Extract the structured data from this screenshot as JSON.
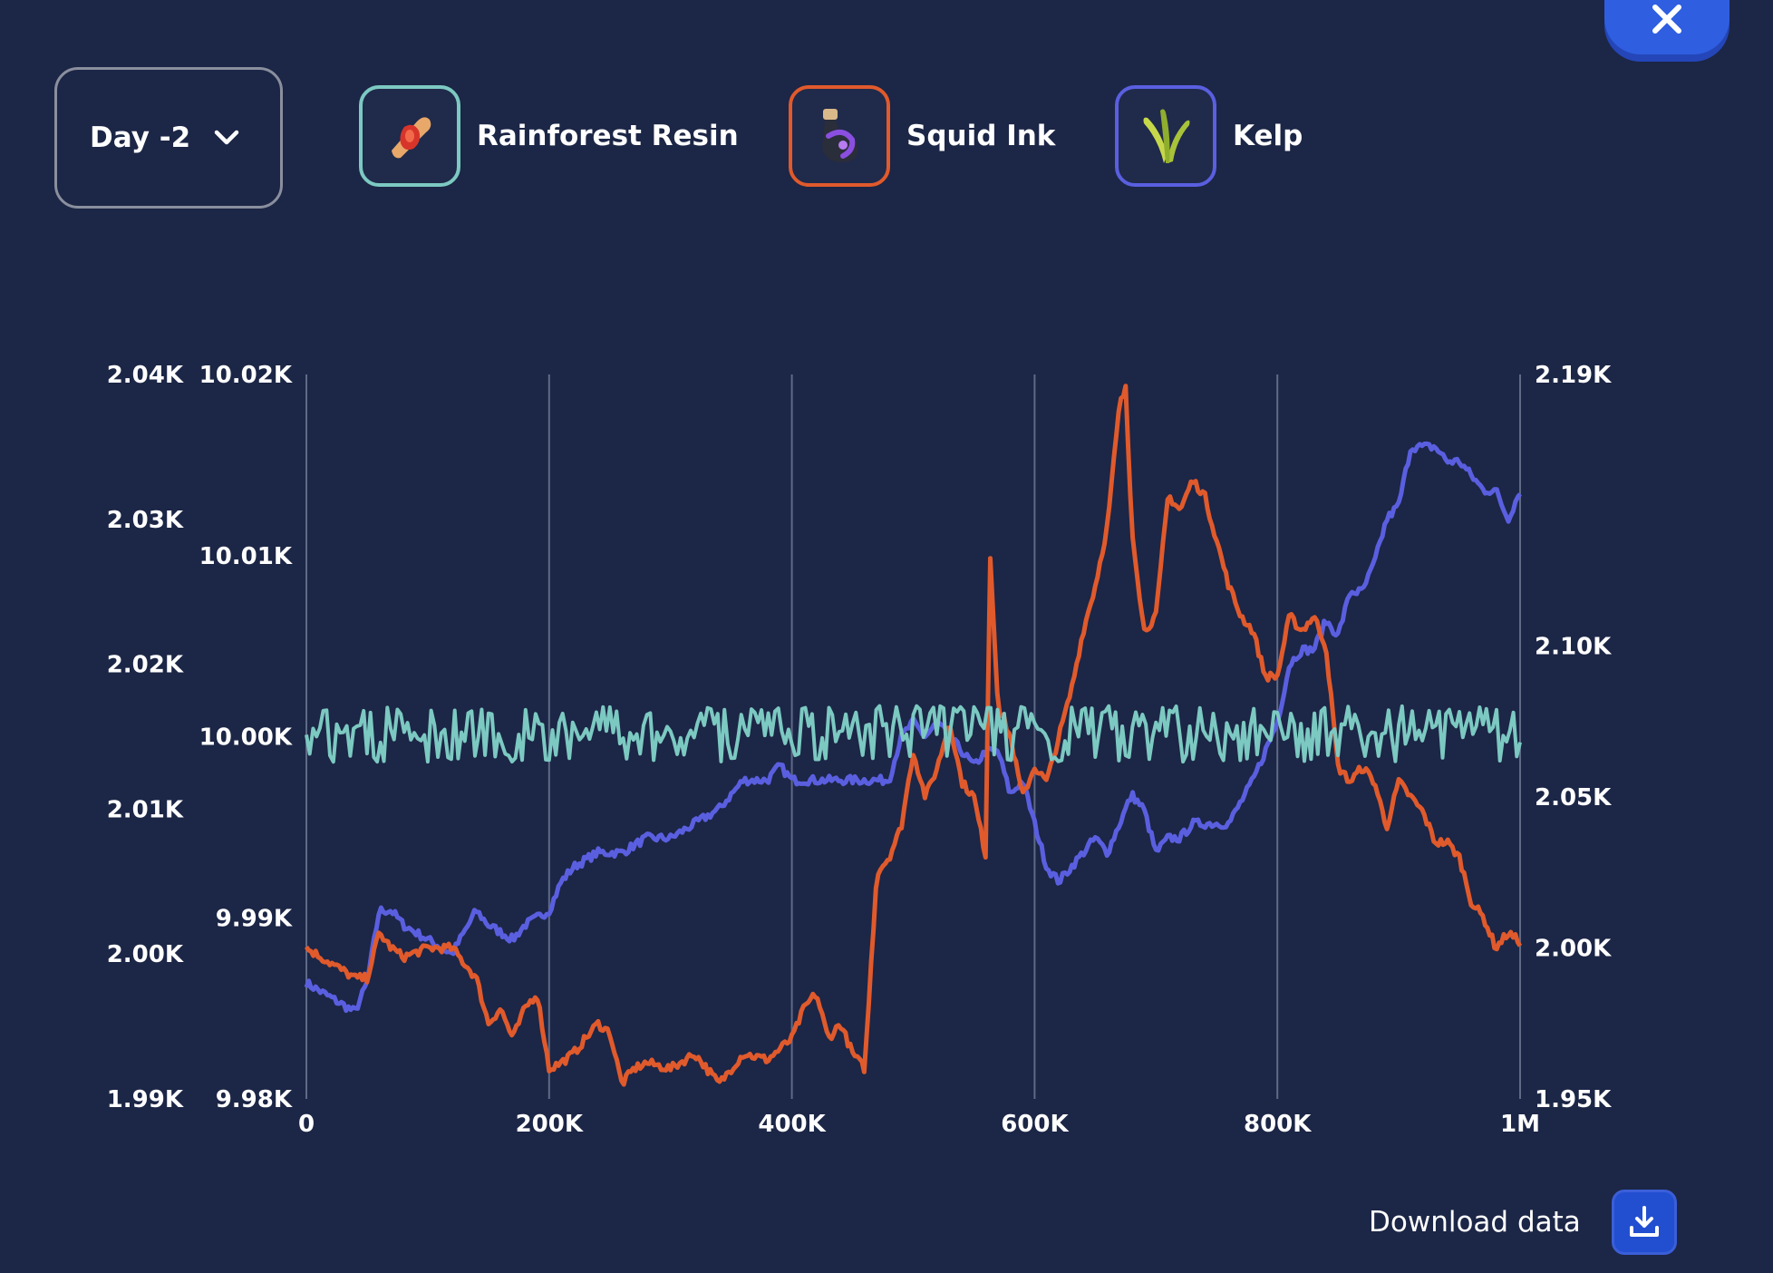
{
  "day_select": {
    "label": "Day -2"
  },
  "legend": [
    {
      "label": "Rainforest Resin",
      "color": "#7cc9c2",
      "icon": "resin-icon"
    },
    {
      "label": "Squid Ink",
      "color": "#e05a2c",
      "icon": "ink-bottle-icon"
    },
    {
      "label": "Kelp",
      "color": "#5a5fe0",
      "icon": "kelp-icon"
    }
  ],
  "download": {
    "label": "Download data"
  },
  "chart_data": {
    "type": "line",
    "x_ticks": [
      "0",
      "200K",
      "400K",
      "600K",
      "800K",
      "1M"
    ],
    "xlim": [
      0,
      1000000
    ],
    "grid": "vertical",
    "axes": [
      {
        "id": "kelp_axis",
        "position": "left-outer",
        "ylim": [
          1990,
          2040
        ],
        "ticks": [
          {
            "value": 2040,
            "label": "2.04K"
          },
          {
            "value": 2030,
            "label": "2.03K"
          },
          {
            "value": 2020,
            "label": "2.02K"
          },
          {
            "value": 2010,
            "label": "2.01K"
          },
          {
            "value": 2000,
            "label": "2.00K"
          },
          {
            "value": 1990,
            "label": "1.99K"
          }
        ]
      },
      {
        "id": "resin_axis",
        "position": "left-inner",
        "ylim": [
          9980,
          10020
        ],
        "ticks": [
          {
            "value": 10020,
            "label": "10.02K"
          },
          {
            "value": 10010,
            "label": "10.01K"
          },
          {
            "value": 10000,
            "label": "10.00K"
          },
          {
            "value": 9990,
            "label": "9.99K"
          },
          {
            "value": 9980,
            "label": "9.98K"
          }
        ]
      },
      {
        "id": "ink_axis",
        "position": "right",
        "ylim": [
          1950,
          2190
        ],
        "ticks": [
          {
            "value": 2190,
            "label": "2.19K"
          },
          {
            "value": 2100,
            "label": "2.10K"
          },
          {
            "value": 2050,
            "label": "2.05K"
          },
          {
            "value": 2000,
            "label": "2.00K"
          },
          {
            "value": 1950,
            "label": "1.95K"
          }
        ]
      }
    ],
    "series": [
      {
        "name": "Rainforest Resin",
        "axis": "resin_axis",
        "color": "#7cc9c2",
        "style": "oscillating",
        "center": 10000.2,
        "high": 10001.7,
        "low": 9998.6,
        "x": [
          0,
          1000000
        ]
      },
      {
        "name": "Squid Ink",
        "axis": "ink_axis",
        "color": "#e05a2c",
        "x": [
          0,
          20000,
          40000,
          50000,
          60000,
          70000,
          80000,
          100000,
          120000,
          140000,
          150000,
          160000,
          170000,
          180000,
          190000,
          200000,
          210000,
          220000,
          240000,
          250000,
          260000,
          270000,
          280000,
          300000,
          320000,
          340000,
          360000,
          380000,
          400000,
          410000,
          420000,
          430000,
          440000,
          450000,
          460000,
          470000,
          480000,
          490000,
          500000,
          510000,
          520000,
          530000,
          540000,
          550000,
          560000,
          563000,
          570000,
          580000,
          590000,
          600000,
          610000,
          620000,
          630000,
          640000,
          650000,
          660000,
          670000,
          675000,
          680000,
          690000,
          700000,
          710000,
          720000,
          730000,
          740000,
          750000,
          760000,
          770000,
          780000,
          790000,
          800000,
          810000,
          820000,
          830000,
          840000,
          850000,
          860000,
          870000,
          880000,
          890000,
          900000,
          910000,
          920000,
          930000,
          940000,
          950000,
          960000,
          970000,
          980000,
          990000,
          1000000
        ],
        "y": [
          2000,
          1995,
          1990,
          1990,
          2005,
          2000,
          1997,
          2000,
          2000,
          1990,
          1975,
          1980,
          1970,
          1980,
          1985,
          1960,
          1962,
          1965,
          1975,
          1972,
          1955,
          1960,
          1962,
          1960,
          1965,
          1955,
          1965,
          1963,
          1970,
          1980,
          1985,
          1970,
          1975,
          1965,
          1960,
          2025,
          2030,
          2040,
          2065,
          2050,
          2060,
          2075,
          2055,
          2050,
          2030,
          2133,
          2080,
          2070,
          2050,
          2060,
          2055,
          2070,
          2085,
          2105,
          2120,
          2140,
          2180,
          2185,
          2140,
          2105,
          2110,
          2150,
          2145,
          2155,
          2150,
          2135,
          2120,
          2110,
          2105,
          2090,
          2090,
          2110,
          2105,
          2110,
          2100,
          2060,
          2055,
          2060,
          2055,
          2040,
          2055,
          2050,
          2045,
          2035,
          2035,
          2030,
          2015,
          2010,
          2000,
          2005,
          2002
        ]
      },
      {
        "name": "Kelp",
        "axis": "kelp_axis",
        "color": "#5a5fe0",
        "x": [
          0,
          20000,
          40000,
          50000,
          60000,
          70000,
          80000,
          100000,
          120000,
          140000,
          150000,
          170000,
          180000,
          200000,
          210000,
          220000,
          240000,
          250000,
          260000,
          280000,
          300000,
          320000,
          340000,
          360000,
          380000,
          390000,
          400000,
          420000,
          440000,
          460000,
          480000,
          490000,
          500000,
          510000,
          520000,
          530000,
          540000,
          550000,
          560000,
          570000,
          580000,
          590000,
          600000,
          610000,
          620000,
          630000,
          640000,
          650000,
          660000,
          670000,
          680000,
          690000,
          700000,
          710000,
          720000,
          730000,
          740000,
          760000,
          780000,
          790000,
          800000,
          810000,
          820000,
          830000,
          840000,
          850000,
          860000,
          870000,
          880000,
          890000,
          900000,
          910000,
          920000,
          930000,
          940000,
          950000,
          960000,
          970000,
          980000,
          990000,
          1000000
        ],
        "y": [
          1998,
          1997,
          1996,
          1998,
          2003,
          2003,
          2002,
          2001,
          2000,
          2003,
          2002,
          2001,
          2002,
          2003,
          2005,
          2006,
          2007,
          2007,
          2007,
          2008,
          2008,
          2009,
          2010,
          2012,
          2012,
          2013,
          2012,
          2012,
          2012,
          2012,
          2012,
          2015,
          2016,
          2015,
          2016,
          2015,
          2014,
          2013,
          2014,
          2014,
          2011,
          2012,
          2009,
          2006,
          2005,
          2006,
          2007,
          2008,
          2007,
          2009,
          2011,
          2010,
          2007,
          2008,
          2008,
          2009,
          2009,
          2009,
          2012,
          2014,
          2016,
          2020,
          2021,
          2021,
          2023,
          2022,
          2025,
          2025,
          2027,
          2030,
          2031,
          2035,
          2035,
          2035,
          2034,
          2034,
          2033,
          2032,
          2032,
          2030,
          2032
        ]
      }
    ]
  }
}
